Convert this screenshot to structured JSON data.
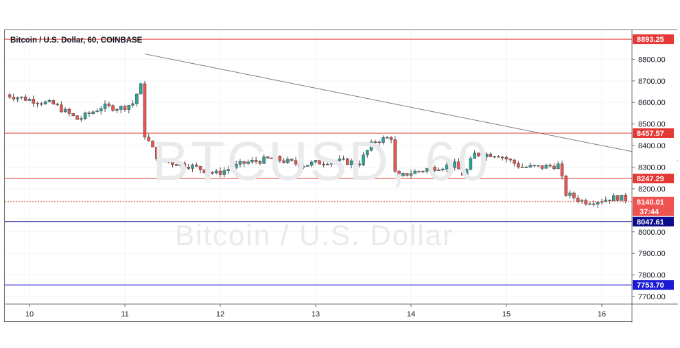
{
  "chart_data": {
    "type": "candlestick",
    "title": "Bitcoin / U.S. Dollar, 60, COINBASE",
    "watermark_symbol": "BTCUSD, 60",
    "watermark_name": "Bitcoin / U.S. Dollar",
    "x_ticks": [
      "10",
      "11",
      "12",
      "13",
      "14",
      "15",
      "16"
    ],
    "y_ticks": [
      "8800.00",
      "8700.00",
      "8600.00",
      "8500.00",
      "8400.00",
      "8300.00",
      "8200.00",
      "8000.00",
      "7900.00",
      "7800.00",
      "7700.00"
    ],
    "ylim": [
      7665,
      8935
    ],
    "levels": [
      {
        "label": "8893.25",
        "value": 8893.25,
        "color": "#e53935"
      },
      {
        "label": "8457.57",
        "value": 8457.57,
        "color": "#e53935"
      },
      {
        "label": "8247.29",
        "value": 8247.29,
        "color": "#e53935"
      },
      {
        "label": "8047.61",
        "value": 8047.61,
        "color": "#0d0d8c"
      },
      {
        "label": "7753.70",
        "value": 7753.7,
        "color": "#1a1ad6"
      }
    ],
    "current_price": {
      "label": "8140.01",
      "value": 8140.01,
      "countdown": "37:44",
      "color": "#ef5350"
    },
    "trendline": {
      "start": [
        1.21,
        8825
      ],
      "end": [
        7.3,
        8285
      ]
    },
    "anchors": [
      [
        -0.25,
        8640
      ],
      [
        0.3,
        8590
      ],
      [
        0.55,
        8520
      ],
      [
        0.8,
        8580
      ],
      [
        1.0,
        8575
      ],
      [
        1.15,
        8600
      ],
      [
        1.2,
        8720
      ],
      [
        1.25,
        8450
      ],
      [
        1.4,
        8330
      ],
      [
        1.7,
        8310
      ],
      [
        2.0,
        8270
      ],
      [
        2.3,
        8320
      ],
      [
        2.6,
        8340
      ],
      [
        2.9,
        8310
      ],
      [
        3.2,
        8330
      ],
      [
        3.5,
        8320
      ],
      [
        3.65,
        8420
      ],
      [
        3.85,
        8440
      ],
      [
        3.88,
        8240
      ],
      [
        4.0,
        8270
      ],
      [
        4.3,
        8300
      ],
      [
        4.5,
        8310
      ],
      [
        4.6,
        8260
      ],
      [
        4.7,
        8360
      ],
      [
        4.95,
        8360
      ],
      [
        5.2,
        8300
      ],
      [
        5.4,
        8300
      ],
      [
        5.6,
        8310
      ],
      [
        5.65,
        8180
      ],
      [
        5.75,
        8160
      ],
      [
        5.85,
        8140
      ],
      [
        6.0,
        8145
      ],
      [
        6.2,
        8160
      ],
      [
        6.3,
        8150
      ]
    ],
    "colors": {
      "up": "#26a69a",
      "down": "#ef5350",
      "trendline": "#787b86",
      "grid": "#f0f3fa"
    }
  }
}
